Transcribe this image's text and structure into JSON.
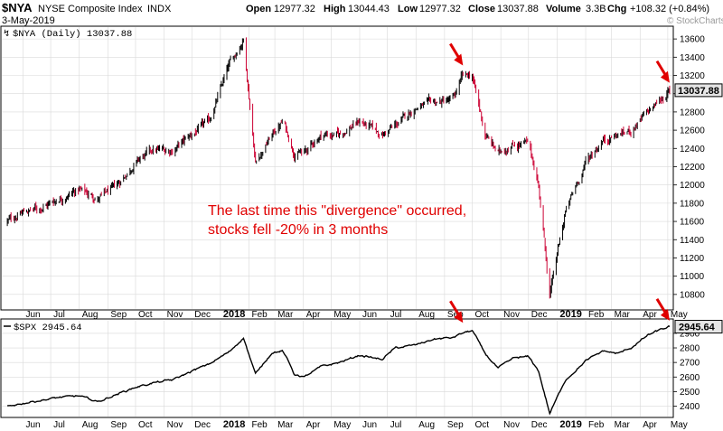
{
  "header": {
    "symbol": "$NYA",
    "name": "NYSE Composite Index",
    "exchange": "INDX",
    "date": "3-May-2019",
    "open_label": "Open",
    "open": "12977.32",
    "high_label": "High",
    "high": "13044.43",
    "low_label": "Low",
    "low": "12977.32",
    "close_label": "Close",
    "close": "13037.88",
    "volume_label": "Volume",
    "volume": "3.3B",
    "chg_label": "Chg",
    "chg": "+108.32 (+0.84%)",
    "watermark": "© StockCharts.com"
  },
  "annotation": {
    "line1": "The last time this \"divergence\" occurred,",
    "line2": "stocks fell -20% in 3 months",
    "color": "#e00000"
  },
  "colors": {
    "up": "#000000",
    "down": "#cc0033",
    "arrow": "#e00000",
    "grid": "#d9d9d9",
    "badge_bg": "#e6e6e6"
  },
  "chart_data": [
    {
      "type": "ohlc",
      "legend": "$NYA (Daily) 13037.88",
      "last_value": "13037.88",
      "y_ticks": [
        10800,
        11000,
        11200,
        11400,
        11600,
        11800,
        12000,
        12200,
        12400,
        12600,
        12800,
        13000,
        13200,
        13400,
        13600
      ],
      "ylim": [
        10650,
        13720
      ],
      "x": [
        "2017-05-15",
        "2017-06-01",
        "2017-06-20",
        "2017-07-10",
        "2017-08-01",
        "2017-08-21",
        "2017-09-10",
        "2017-10-01",
        "2017-10-20",
        "2017-11-10",
        "2017-12-01",
        "2017-12-20",
        "2018-01-10",
        "2018-01-26",
        "2018-02-08",
        "2018-02-26",
        "2018-03-10",
        "2018-03-22",
        "2018-04-02",
        "2018-04-20",
        "2018-05-10",
        "2018-06-01",
        "2018-06-25",
        "2018-07-10",
        "2018-08-01",
        "2018-08-20",
        "2018-09-10",
        "2018-09-20",
        "2018-10-01",
        "2018-10-15",
        "2018-10-29",
        "2018-11-15",
        "2018-12-01",
        "2018-12-12",
        "2018-12-24",
        "2019-01-10",
        "2019-02-01",
        "2019-02-20",
        "2019-03-08",
        "2019-03-22",
        "2019-04-10",
        "2019-04-25",
        "2019-05-03"
      ],
      "close": [
        11600,
        11700,
        11750,
        11850,
        11950,
        11850,
        11980,
        12250,
        12380,
        12380,
        12550,
        12700,
        13300,
        13600,
        12250,
        12550,
        12700,
        12350,
        12350,
        12550,
        12550,
        12700,
        12550,
        12650,
        12850,
        12900,
        12930,
        13180,
        13200,
        12550,
        12350,
        12450,
        12450,
        12000,
        10800,
        11700,
        12250,
        12500,
        12550,
        12600,
        12800,
        12950,
        13037.88
      ]
    },
    {
      "type": "line",
      "legend": "$SPX 2945.64",
      "last_value": "2945.64",
      "y_ticks": [
        2400,
        2500,
        2600,
        2700,
        2800,
        2900
      ],
      "ylim": [
        2335,
        2980
      ],
      "x": [
        "2017-05-15",
        "2017-06-01",
        "2017-06-20",
        "2017-07-10",
        "2017-08-01",
        "2017-08-21",
        "2017-09-10",
        "2017-10-01",
        "2017-10-20",
        "2017-11-10",
        "2017-12-01",
        "2017-12-20",
        "2018-01-10",
        "2018-01-26",
        "2018-02-08",
        "2018-02-26",
        "2018-03-10",
        "2018-03-22",
        "2018-04-02",
        "2018-04-20",
        "2018-05-10",
        "2018-06-01",
        "2018-06-25",
        "2018-07-10",
        "2018-08-01",
        "2018-08-20",
        "2018-09-10",
        "2018-09-20",
        "2018-10-01",
        "2018-10-15",
        "2018-10-29",
        "2018-11-15",
        "2018-12-01",
        "2018-12-12",
        "2018-12-24",
        "2019-01-10",
        "2019-02-01",
        "2019-02-20",
        "2019-03-08",
        "2019-03-22",
        "2019-04-10",
        "2019-04-25",
        "2019-05-03"
      ],
      "values": [
        2400,
        2420,
        2440,
        2460,
        2470,
        2430,
        2480,
        2530,
        2560,
        2580,
        2640,
        2690,
        2770,
        2870,
        2620,
        2770,
        2780,
        2620,
        2600,
        2670,
        2700,
        2750,
        2720,
        2800,
        2820,
        2860,
        2870,
        2900,
        2920,
        2760,
        2660,
        2730,
        2740,
        2640,
        2350,
        2580,
        2710,
        2780,
        2760,
        2800,
        2890,
        2930,
        2945.64
      ]
    }
  ],
  "x_axis": {
    "labels": [
      {
        "text": "Jun",
        "date": "2017-06-01"
      },
      {
        "text": "Jul",
        "date": "2017-07-01"
      },
      {
        "text": "Aug",
        "date": "2017-08-01"
      },
      {
        "text": "Sep",
        "date": "2017-09-01"
      },
      {
        "text": "Oct",
        "date": "2017-10-01"
      },
      {
        "text": "Nov",
        "date": "2017-11-01"
      },
      {
        "text": "Dec",
        "date": "2017-12-01"
      },
      {
        "text": "2018",
        "date": "2018-01-01",
        "bold": true
      },
      {
        "text": "Feb",
        "date": "2018-02-01"
      },
      {
        "text": "Mar",
        "date": "2018-03-01"
      },
      {
        "text": "Apr",
        "date": "2018-04-01"
      },
      {
        "text": "May",
        "date": "2018-05-01"
      },
      {
        "text": "Jun",
        "date": "2018-06-01"
      },
      {
        "text": "Jul",
        "date": "2018-07-01"
      },
      {
        "text": "Aug",
        "date": "2018-08-01"
      },
      {
        "text": "Sep",
        "date": "2018-09-01"
      },
      {
        "text": "Oct",
        "date": "2018-10-01"
      },
      {
        "text": "Nov",
        "date": "2018-11-01"
      },
      {
        "text": "Dec",
        "date": "2018-12-01"
      },
      {
        "text": "2019",
        "date": "2019-01-01",
        "bold": true
      },
      {
        "text": "Feb",
        "date": "2019-02-01"
      },
      {
        "text": "Mar",
        "date": "2019-03-01"
      },
      {
        "text": "Apr",
        "date": "2019-04-01"
      },
      {
        "text": "May",
        "date": "2019-05-01"
      }
    ],
    "start": "2017-05-10",
    "end": "2019-05-06"
  },
  "arrows": [
    {
      "chart": 0,
      "date": "2018-09-21",
      "value": 13250
    },
    {
      "chart": 0,
      "date": "2019-05-03",
      "value": 13060
    },
    {
      "chart": 1,
      "date": "2018-09-21",
      "value": 2935
    },
    {
      "chart": 1,
      "date": "2019-05-03",
      "value": 2950
    }
  ]
}
